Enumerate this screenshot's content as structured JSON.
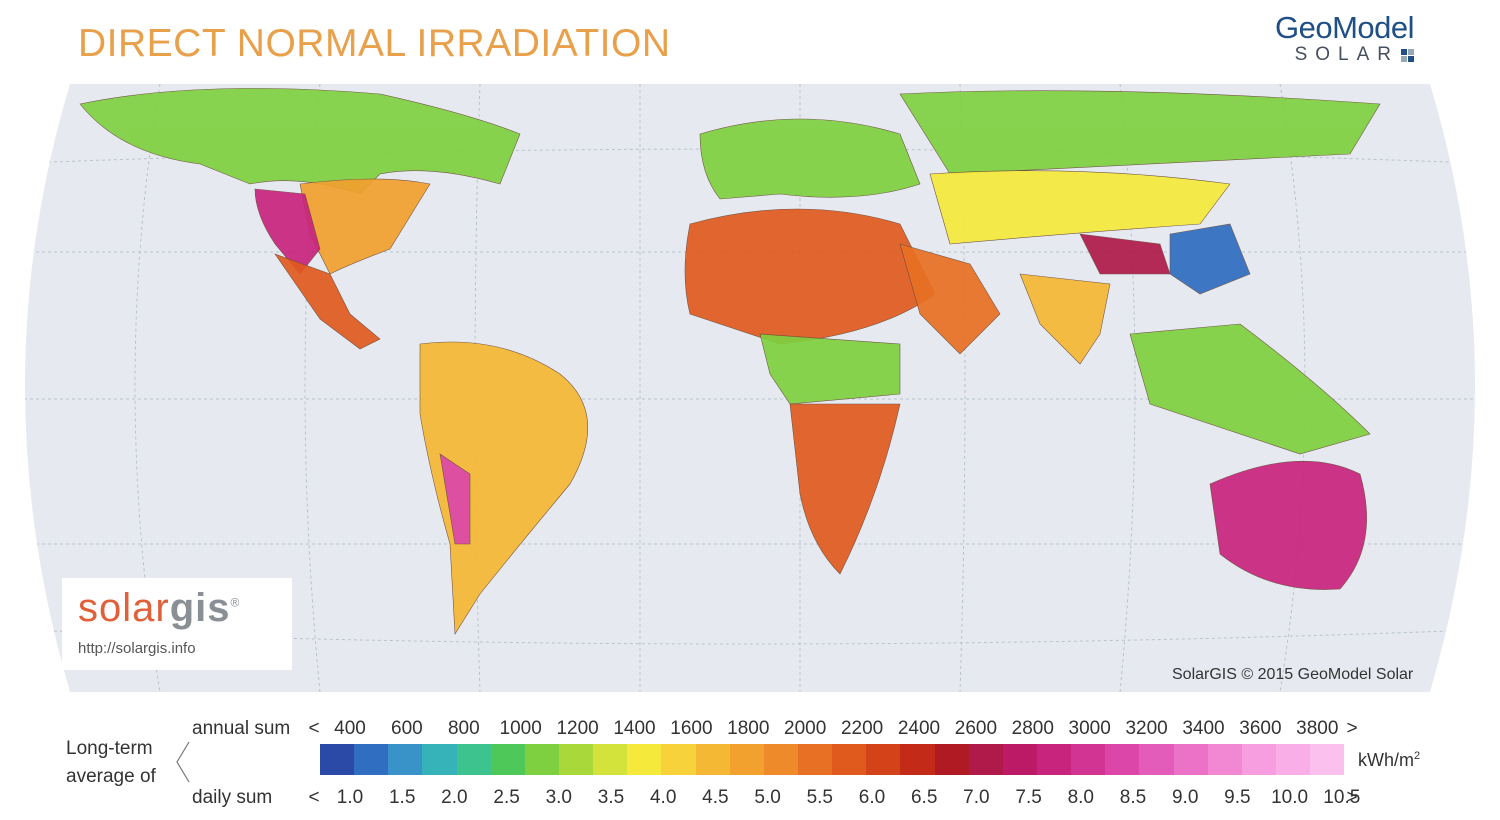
{
  "title": "DIRECT NORMAL IRRADIATION",
  "brand": {
    "name_top": "GeoModel",
    "name_bottom": "SOLAR",
    "mark_colors": [
      "#1f4f84",
      "#9aa7b6",
      "#9aa7b6",
      "#1f4f84"
    ]
  },
  "logo": {
    "part1": "solar",
    "part2": "gis",
    "registered": "®",
    "url": "http://solargis.info"
  },
  "copyright": "SolarGIS © 2015 GeoModel Solar",
  "legend": {
    "title_line1": "Long-term",
    "title_line2": "average of",
    "annual_label": "annual sum",
    "daily_label": "daily sum",
    "annual_ticks": [
      "<",
      "400",
      "600",
      "800",
      "1000",
      "1200",
      "1400",
      "1600",
      "1800",
      "2000",
      "2200",
      "2400",
      "2600",
      "2800",
      "3000",
      "3200",
      "3400",
      "3600",
      "3800",
      ">"
    ],
    "daily_ticks": [
      "<",
      "1.0",
      "1.5",
      "2.0",
      "2.5",
      "3.0",
      "3.5",
      "4.0",
      "4.5",
      "5.0",
      "5.5",
      "6.0",
      "6.5",
      "7.0",
      "7.5",
      "8.0",
      "8.5",
      "9.0",
      "9.5",
      "10.0",
      "10.5",
      ">"
    ],
    "unit": "kWh/m",
    "unit_sup": "2",
    "colors": [
      "#2b4aa8",
      "#2f6ec0",
      "#3a93c8",
      "#35b3b8",
      "#3cc38e",
      "#4fc85a",
      "#7fd040",
      "#a8d83a",
      "#d4e23c",
      "#f5ea3c",
      "#f7d23a",
      "#f5b834",
      "#f2a02e",
      "#ee8a2a",
      "#e87024",
      "#e05a1e",
      "#d4421a",
      "#c42a18",
      "#b01a22",
      "#b01a4a",
      "#bc1a66",
      "#c8247e",
      "#d23494",
      "#dc46a8",
      "#e45cba",
      "#ec72c8",
      "#f288d4",
      "#f79ee0",
      "#faaee8",
      "#fcc0ee"
    ]
  },
  "map": {
    "ocean": "#e6eaf0",
    "land_ranges": [
      {
        "region": "north-america-north",
        "color": "#7fd040"
      },
      {
        "region": "usa-east",
        "color": "#f2a02e"
      },
      {
        "region": "usa-southwest",
        "color": "#c8247e"
      },
      {
        "region": "mexico",
        "color": "#e05a1e"
      },
      {
        "region": "south-america",
        "color": "#f5b834"
      },
      {
        "region": "andes",
        "color": "#dc46a8"
      },
      {
        "region": "europe",
        "color": "#7fd040"
      },
      {
        "region": "sahara",
        "color": "#e05a1e"
      },
      {
        "region": "central-africa",
        "color": "#7fd040"
      },
      {
        "region": "southern-africa",
        "color": "#e05a1e"
      },
      {
        "region": "arabia",
        "color": "#e87024"
      },
      {
        "region": "siberia",
        "color": "#7fd040"
      },
      {
        "region": "central-asia",
        "color": "#f5ea3c"
      },
      {
        "region": "tibet",
        "color": "#b01a4a"
      },
      {
        "region": "china-east",
        "color": "#2f6ec0"
      },
      {
        "region": "india",
        "color": "#f5b834"
      },
      {
        "region": "southeast-asia",
        "color": "#7fd040"
      },
      {
        "region": "australia",
        "color": "#c8247e"
      }
    ]
  }
}
